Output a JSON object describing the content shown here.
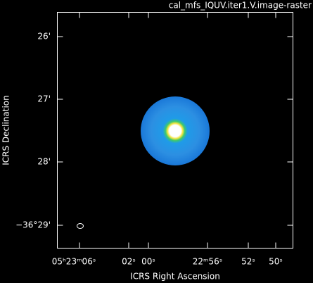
{
  "title": "cal_mfs_IQUV.iter1.V.image-raster",
  "axes": {
    "x": {
      "label": "ICRS Right Ascension",
      "ticks": [
        "05ʰ23ᵐ06ˢ",
        "02ˢ",
        "00ˢ",
        "22ᵐ56ˢ",
        "52ˢ",
        "50ˢ"
      ]
    },
    "y": {
      "label": "ICRS Declination",
      "ticks": [
        "26'",
        "27'",
        "28'",
        "−36°29'"
      ]
    }
  }
}
